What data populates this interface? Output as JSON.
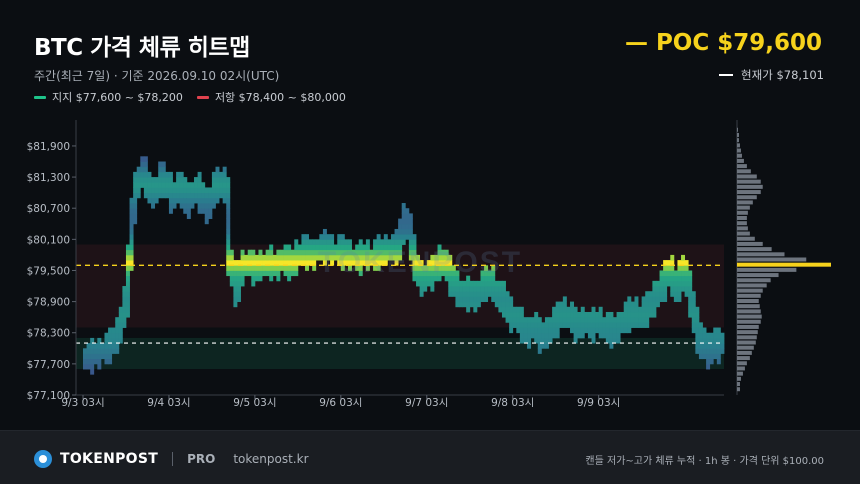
{
  "header": {
    "title": "BTC 가격 체류 히트맵",
    "subtitle": "주간(최근 7일) · 기준 2026.09.10  02시(UTC)",
    "poc_label": "— POC $79,600",
    "current_label": "현재가 $78,101",
    "support_label": "지지 $77,600 ~ $78,200",
    "resistance_label": "저항 $78,400 ~ $80,000"
  },
  "colors": {
    "background": "#0b0e12",
    "support": "#1ec38a",
    "resistance": "#e0424e",
    "poc": "#f6d21c",
    "current": "#ffffff",
    "profile_bar": "#6d747e"
  },
  "footer": {
    "brand": "TOKENPOST",
    "tier": "PRO",
    "url": "tokenpost.kr",
    "note": "캔들 저가~고가 체류 누적 · 1h 봉 · 가격 단위 $100.00"
  },
  "watermark": "TOKENPOST",
  "chart_data": {
    "type": "heatmap",
    "ylim": [
      77100,
      82400
    ],
    "xlim": [
      0,
      144
    ],
    "y_ticks": [
      77100,
      77700,
      78300,
      78900,
      79500,
      80100,
      80700,
      81300,
      81900
    ],
    "y_tick_labels": [
      "$77,100",
      "$77,700",
      "$78,300",
      "$78,900",
      "$79,500",
      "$80,100",
      "$80,700",
      "$81,300",
      "$81,900"
    ],
    "x_ticks": [
      0,
      24,
      48,
      72,
      96,
      120,
      144
    ],
    "x_tick_labels": [
      "9/3 03시",
      "9/4 03시",
      "9/5 03시",
      "9/6 03시",
      "9/7 03시",
      "9/8 03시",
      "9/9 03시"
    ],
    "poc": 79600,
    "current_price": 78101,
    "support_zone": [
      77600,
      78200
    ],
    "resistance_zone": [
      78400,
      80000
    ],
    "price_path_hourly": [
      [
        0,
        77800
      ],
      [
        3,
        77900
      ],
      [
        6,
        77950
      ],
      [
        8,
        78100
      ],
      [
        10,
        78300
      ],
      [
        12,
        78900
      ],
      [
        13,
        79700
      ],
      [
        14,
        80700
      ],
      [
        15,
        81100
      ],
      [
        16,
        81300
      ],
      [
        17,
        81400
      ],
      [
        18,
        81200
      ],
      [
        19,
        81000
      ],
      [
        20,
        80950
      ],
      [
        21,
        81100
      ],
      [
        22,
        81300
      ],
      [
        23,
        81200
      ],
      [
        24,
        81100
      ],
      [
        25,
        80900
      ],
      [
        26,
        81000
      ],
      [
        27,
        81100
      ],
      [
        28,
        81050
      ],
      [
        29,
        80800
      ],
      [
        30,
        80900
      ],
      [
        31,
        81000
      ],
      [
        32,
        81050
      ],
      [
        33,
        80950
      ],
      [
        34,
        80800
      ],
      [
        35,
        80700
      ],
      [
        36,
        80900
      ],
      [
        37,
        81100
      ],
      [
        38,
        81150
      ],
      [
        39,
        81200
      ],
      [
        40,
        81100
      ],
      [
        41,
        79600
      ],
      [
        42,
        79400
      ],
      [
        43,
        79100
      ],
      [
        44,
        79500
      ],
      [
        45,
        79600
      ],
      [
        46,
        79650
      ],
      [
        47,
        79600
      ],
      [
        48,
        79550
      ],
      [
        50,
        79600
      ],
      [
        52,
        79650
      ],
      [
        54,
        79600
      ],
      [
        56,
        79700
      ],
      [
        58,
        79650
      ],
      [
        60,
        79800
      ],
      [
        62,
        79900
      ],
      [
        64,
        79800
      ],
      [
        66,
        79900
      ],
      [
        68,
        79950
      ],
      [
        70,
        79850
      ],
      [
        72,
        79900
      ],
      [
        74,
        79800
      ],
      [
        76,
        79750
      ],
      [
        78,
        79800
      ],
      [
        80,
        79750
      ],
      [
        82,
        79800
      ],
      [
        84,
        79850
      ],
      [
        86,
        79950
      ],
      [
        88,
        79900
      ],
      [
        89,
        80300
      ],
      [
        90,
        80500
      ],
      [
        91,
        80300
      ],
      [
        92,
        79900
      ],
      [
        93,
        79600
      ],
      [
        94,
        79400
      ],
      [
        95,
        79300
      ],
      [
        96,
        79400
      ],
      [
        98,
        79500
      ],
      [
        100,
        79700
      ],
      [
        102,
        79500
      ],
      [
        104,
        79200
      ],
      [
        106,
        79000
      ],
      [
        108,
        79100
      ],
      [
        110,
        79000
      ],
      [
        112,
        79200
      ],
      [
        114,
        79300
      ],
      [
        116,
        79000
      ],
      [
        118,
        78900
      ],
      [
        120,
        78600
      ],
      [
        122,
        78500
      ],
      [
        124,
        78300
      ],
      [
        126,
        78400
      ],
      [
        128,
        78200
      ],
      [
        130,
        78300
      ],
      [
        132,
        78500
      ],
      [
        134,
        78700
      ],
      [
        136,
        78600
      ],
      [
        138,
        78400
      ],
      [
        140,
        78500
      ],
      [
        142,
        78450
      ],
      [
        144,
        78500
      ],
      [
        146,
        78400
      ],
      [
        148,
        78300
      ],
      [
        150,
        78450
      ],
      [
        152,
        78600
      ],
      [
        154,
        78700
      ],
      [
        156,
        78600
      ],
      [
        158,
        78800
      ],
      [
        160,
        79000
      ],
      [
        162,
        79200
      ],
      [
        163,
        79400
      ],
      [
        164,
        79500
      ],
      [
        165,
        79300
      ],
      [
        166,
        79100
      ],
      [
        167,
        79400
      ],
      [
        168,
        79500
      ],
      [
        169,
        79200
      ],
      [
        170,
        78900
      ],
      [
        171,
        78500
      ],
      [
        172,
        78100
      ],
      [
        173,
        78200
      ],
      [
        174,
        78000
      ],
      [
        175,
        77900
      ],
      [
        176,
        78100
      ],
      [
        177,
        78000
      ],
      [
        178,
        78100
      ]
    ],
    "profile_volumes": [
      [
        77200,
        3
      ],
      [
        77300,
        3
      ],
      [
        77400,
        4
      ],
      [
        77500,
        6
      ],
      [
        77600,
        8
      ],
      [
        77700,
        10
      ],
      [
        77800,
        13
      ],
      [
        77900,
        15
      ],
      [
        78000,
        17
      ],
      [
        78100,
        19
      ],
      [
        78200,
        20
      ],
      [
        78300,
        21
      ],
      [
        78400,
        22
      ],
      [
        78500,
        24
      ],
      [
        78600,
        25
      ],
      [
        78700,
        24
      ],
      [
        78800,
        23
      ],
      [
        78900,
        22
      ],
      [
        79000,
        24
      ],
      [
        79100,
        26
      ],
      [
        79200,
        30
      ],
      [
        79300,
        34
      ],
      [
        79400,
        42
      ],
      [
        79500,
        60
      ],
      [
        79600,
        95
      ],
      [
        79700,
        70
      ],
      [
        79800,
        48
      ],
      [
        79900,
        35
      ],
      [
        80000,
        26
      ],
      [
        80100,
        18
      ],
      [
        80200,
        13
      ],
      [
        80300,
        11
      ],
      [
        80400,
        10
      ],
      [
        80500,
        10
      ],
      [
        80600,
        11
      ],
      [
        80700,
        13
      ],
      [
        80800,
        16
      ],
      [
        80900,
        20
      ],
      [
        81000,
        24
      ],
      [
        81100,
        26
      ],
      [
        81200,
        24
      ],
      [
        81300,
        20
      ],
      [
        81400,
        14
      ],
      [
        81500,
        10
      ],
      [
        81600,
        7
      ],
      [
        81700,
        5
      ],
      [
        81800,
        4
      ],
      [
        81900,
        3
      ],
      [
        82000,
        2
      ],
      [
        82100,
        2
      ],
      [
        82200,
        1
      ]
    ]
  }
}
